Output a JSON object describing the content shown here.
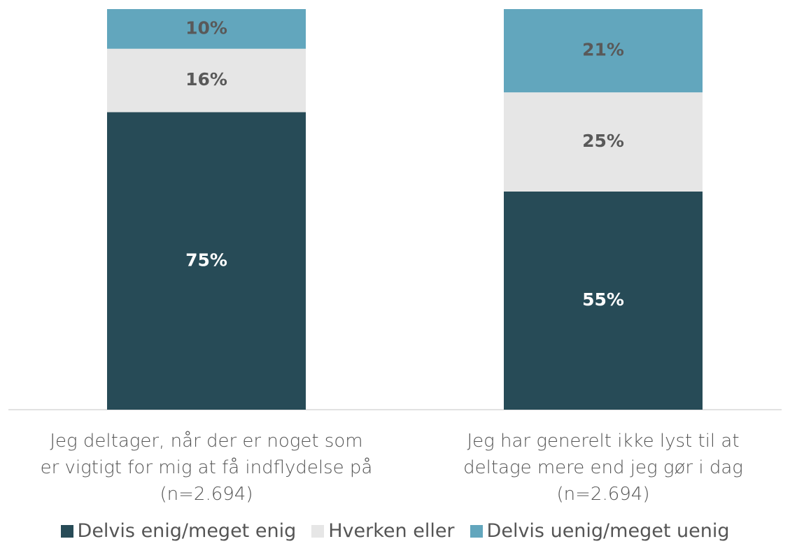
{
  "chart_data": {
    "type": "stacked-bar",
    "categories": [
      "Jeg deltager, når der er noget som\ner vigtigt for mig at få indflydelse på\n(n=2.694)",
      "Jeg har generelt ikke lyst til at\ndeltage mere end jeg gør i dag\n(n=2.694)"
    ],
    "series": [
      {
        "name": "Delvis enig/meget enig",
        "color": "#274b57",
        "label_color": "#ffffff",
        "values": [
          75,
          55
        ],
        "value_labels": [
          "75%",
          "55%"
        ]
      },
      {
        "name": "Hverken eller",
        "color": "#e6e6e6",
        "label_color": "#595959",
        "values": [
          16,
          25
        ],
        "value_labels": [
          "16%",
          "25%"
        ]
      },
      {
        "name": "Delvis uenig/meget uenig",
        "color": "#62a6bd",
        "label_color": "#595959",
        "values": [
          10,
          21
        ],
        "value_labels": [
          "10%",
          "21%"
        ]
      }
    ],
    "ylim": [
      0,
      101
    ]
  }
}
